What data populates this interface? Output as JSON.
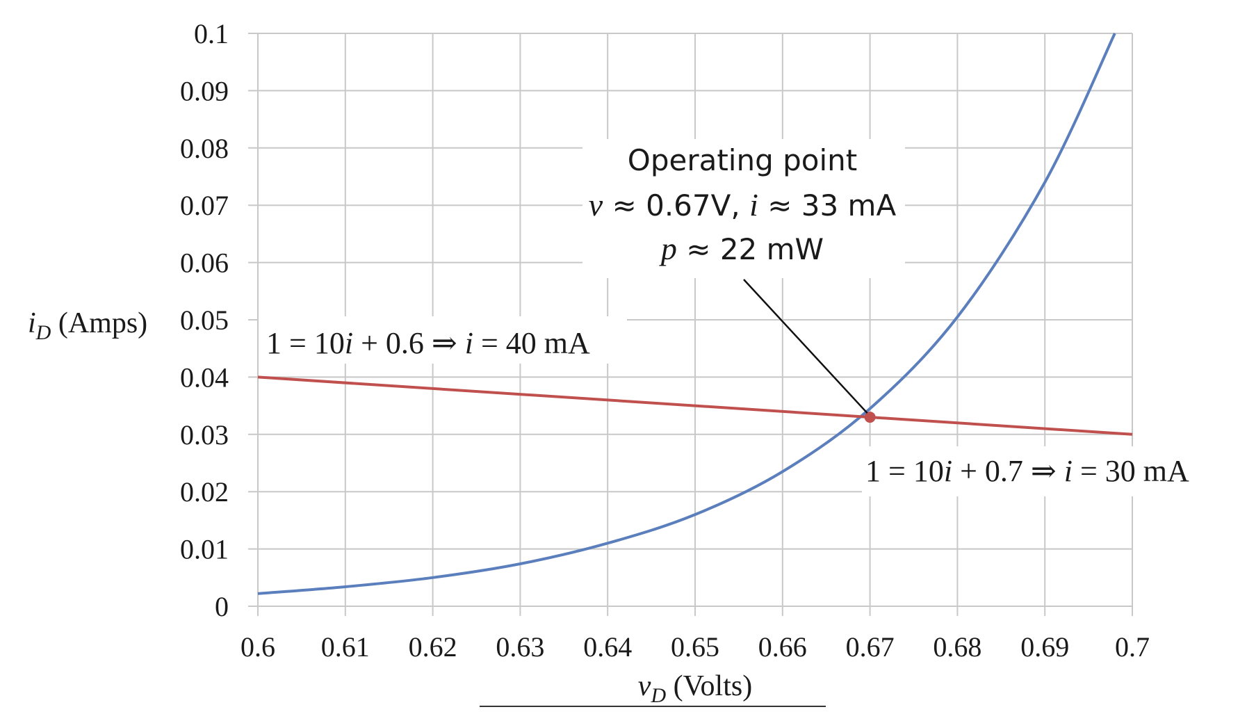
{
  "chart_data": {
    "type": "line",
    "title": "",
    "xlabel": {
      "var": "v",
      "sub": "D",
      "unit": "(Volts)"
    },
    "ylabel": {
      "var": "i",
      "sub": "D",
      "unit": "(Amps)"
    },
    "xlim": [
      0.6,
      0.7
    ],
    "ylim": [
      0,
      0.1
    ],
    "x_ticks": [
      "0.6",
      "0.61",
      "0.62",
      "0.63",
      "0.64",
      "0.65",
      "0.66",
      "0.67",
      "0.68",
      "0.69",
      "0.7"
    ],
    "y_ticks": [
      "0",
      "0.01",
      "0.02",
      "0.03",
      "0.04",
      "0.05",
      "0.06",
      "0.07",
      "0.08",
      "0.09",
      "0.1"
    ],
    "grid": true,
    "legend": "none",
    "series": [
      {
        "color": "#5b7fbd",
        "points": [
          [
            0.6,
            0.0022
          ],
          [
            0.61,
            0.0034
          ],
          [
            0.62,
            0.005
          ],
          [
            0.63,
            0.0074
          ],
          [
            0.64,
            0.011
          ],
          [
            0.65,
            0.016
          ],
          [
            0.66,
            0.0235
          ],
          [
            0.67,
            0.0345
          ],
          [
            0.68,
            0.0505
          ],
          [
            0.69,
            0.074
          ],
          [
            0.698,
            0.1
          ]
        ]
      },
      {
        "color": "#c0504d",
        "points": [
          [
            0.6,
            0.04
          ],
          [
            0.7,
            0.03
          ]
        ]
      }
    ],
    "marker": {
      "x": 0.67,
      "y": 0.033,
      "color": "#c0504d"
    },
    "annotations": {
      "load_left": {
        "parts": [
          {
            "t": "1 = 10",
            "i": false
          },
          {
            "t": "i",
            "i": true
          },
          {
            "t": " + 0.6 ⇒ ",
            "i": false
          },
          {
            "t": "i",
            "i": true
          },
          {
            "t": " = 40 mA",
            "i": false
          }
        ]
      },
      "load_right": {
        "parts": [
          {
            "t": "1 = 10",
            "i": false
          },
          {
            "t": "i",
            "i": true
          },
          {
            "t": " + 0.7 ⇒ ",
            "i": false
          },
          {
            "t": "i",
            "i": true
          },
          {
            "t": " = 30 mA",
            "i": false
          }
        ]
      },
      "operating_point": {
        "line1": "Operating point",
        "line2": {
          "v": "v",
          "vtext": " ≈ 0.67V, ",
          "i": "i",
          "itext": " ≈ 33 mA"
        },
        "line3": {
          "p": "p",
          "ptext": " ≈ 22 mW"
        }
      }
    }
  }
}
